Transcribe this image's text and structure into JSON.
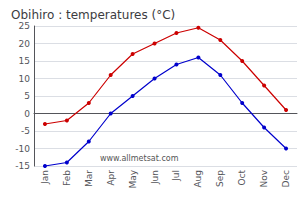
{
  "chart_data": {
    "type": "line",
    "title": "Obihiro : temperatures (°C)",
    "categories": [
      "Jan",
      "Feb",
      "Mar",
      "Apr",
      "May",
      "Jun",
      "Jul",
      "Aug",
      "Sep",
      "Oct",
      "Nov",
      "Dec"
    ],
    "series": [
      {
        "color": "#cc0000",
        "values": [
          -3,
          -2,
          3,
          11,
          17,
          20,
          23,
          24.5,
          21,
          15,
          8,
          1
        ]
      },
      {
        "color": "#0000cc",
        "values": [
          -15,
          -14,
          -8,
          0,
          5,
          10,
          14,
          16,
          11,
          3,
          -4,
          -10
        ]
      }
    ],
    "ylim": [
      -15,
      25
    ],
    "yticks": [
      -15,
      -10,
      -5,
      0,
      5,
      10,
      15,
      20,
      25
    ],
    "grid": true,
    "marker": "circle",
    "annotation": "www.allmetsat.com"
  }
}
